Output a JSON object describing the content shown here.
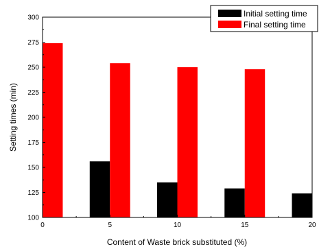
{
  "chart_data": {
    "type": "bar",
    "categories": [
      "0",
      "5",
      "10",
      "15",
      "20"
    ],
    "series": [
      {
        "name": "Initial setting time",
        "color": "#000000",
        "values": [
          null,
          156,
          135,
          129,
          124
        ]
      },
      {
        "name": "Final setting time",
        "color": "#ff0000",
        "values": [
          274,
          254,
          250,
          248,
          null
        ]
      }
    ],
    "xlabel": "Content of Waste brick substituted (%)",
    "ylabel": "Setting times (min)",
    "xlim": [
      0,
      20
    ],
    "ylim": [
      100,
      300
    ],
    "xticks": [
      "0",
      "5",
      "10",
      "15",
      "20"
    ],
    "yticks": [
      "100",
      "125",
      "150",
      "175",
      "200",
      "225",
      "250",
      "275",
      "300"
    ],
    "grid": false,
    "legend_position": "top-right"
  }
}
